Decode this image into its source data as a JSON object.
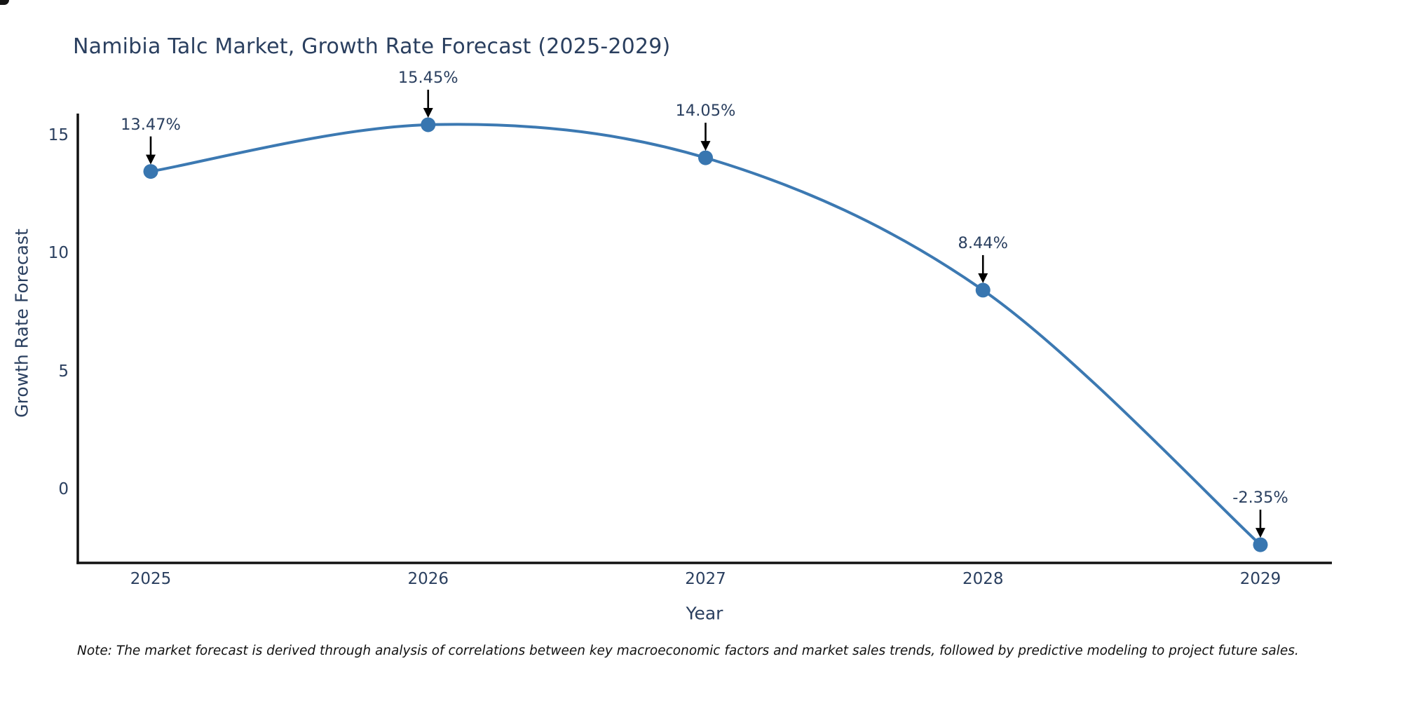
{
  "title": "Namibia Talc Market, Growth Rate Forecast (2025-2029)",
  "note": "Note: The market forecast is derived through analysis of correlations between key macroeconomic factors and market sales trends, followed by predictive modeling to project future sales.",
  "chart_data": {
    "type": "line",
    "title": "Namibia Talc Market, Growth Rate Forecast (2025-2029)",
    "xlabel": "Year",
    "ylabel": "Growth Rate Forecast",
    "x": [
      2025,
      2026,
      2027,
      2028,
      2029
    ],
    "series": [
      {
        "name": "Growth Rate Forecast",
        "values": [
          13.47,
          15.45,
          14.05,
          8.44,
          -2.35
        ],
        "point_labels": [
          "13.47%",
          "15.45%",
          "14.05%",
          "8.44%",
          "-2.35%"
        ]
      }
    ],
    "yticks": [
      0,
      5,
      10,
      15
    ],
    "xtick_labels": [
      "2025",
      "2026",
      "2027",
      "2028",
      "2029"
    ],
    "ylim": [
      -3.1,
      15.9
    ],
    "xlim": [
      2024.73,
      2029.26
    ],
    "grid": false,
    "legend_position": "none",
    "line_shape": "spline",
    "annotations": "value label with black down-arrow above each data point",
    "colors": {
      "line": "#3c79b2",
      "marker": "#3876b0",
      "axis": "#111111",
      "text": "#2a3f5f",
      "arrow": "#000000",
      "note_text": "#111111",
      "background": "#ffffff"
    }
  }
}
